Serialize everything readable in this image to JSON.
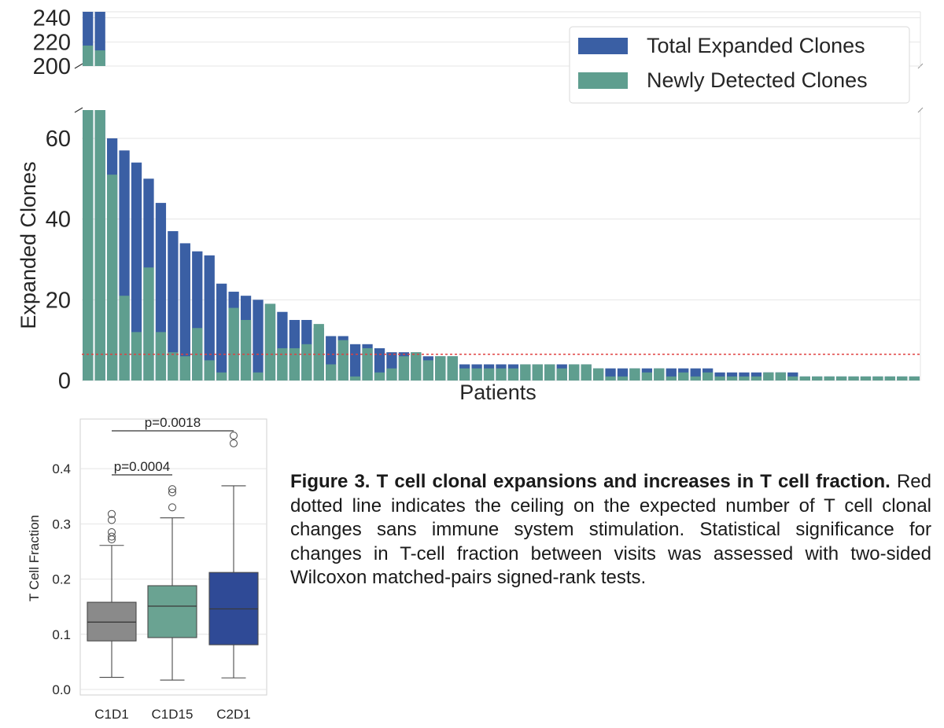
{
  "colors": {
    "total": "#3a5fa4",
    "new": "#5f9e8f",
    "threshold": "#e04040",
    "grid": "#e6e6e6",
    "box_c1d1": "#8a8a8a",
    "box_c1d15": "#6aa392",
    "box_c2d1": "#2f4a96"
  },
  "chart_data": [
    {
      "type": "bar",
      "name": "expanded-clones-by-patient",
      "xlabel": "Patients",
      "ylabel": "Expanded Clones",
      "grid": true,
      "broken_axis": true,
      "upper_ylim": [
        200,
        245
      ],
      "upper_ticks": [
        "240",
        "220",
        "200"
      ],
      "lower_ylim": [
        0,
        67
      ],
      "lower_ticks": [
        "60",
        "40",
        "20",
        "0"
      ],
      "threshold": 6.5,
      "legend": [
        "Total Expanded Clones",
        "Newly Detected Clones"
      ],
      "legend_position": "top-right",
      "series": [
        {
          "name": "Total Expanded Clones",
          "values": [
            245,
            245,
            60,
            57,
            54,
            50,
            44,
            37,
            34,
            32,
            31,
            24,
            22,
            21,
            20,
            19,
            17,
            15,
            15,
            13,
            11,
            11,
            9,
            9,
            8,
            7,
            7,
            7,
            6,
            6,
            6,
            4,
            4,
            4,
            4,
            4,
            4,
            4,
            4,
            4,
            4,
            4,
            3,
            3,
            3,
            3,
            3,
            3,
            3,
            3,
            3,
            3,
            2,
            2,
            2,
            2,
            2,
            2,
            2,
            1,
            1,
            1,
            1,
            1,
            1,
            1,
            1,
            1,
            1
          ]
        },
        {
          "name": "Newly Detected Clones",
          "values": [
            217,
            213,
            51,
            21,
            12,
            28,
            12,
            7,
            6,
            13,
            5,
            2,
            18,
            15,
            2,
            19,
            8,
            8,
            9,
            14,
            4,
            10,
            1,
            8,
            2,
            3,
            6,
            7,
            5,
            6,
            6,
            3,
            3,
            3,
            3,
            3,
            4,
            4,
            4,
            3,
            4,
            4,
            3,
            1,
            1,
            3,
            2,
            3,
            1,
            2,
            1,
            2,
            1,
            1,
            1,
            1,
            2,
            2,
            1,
            1,
            1,
            1,
            1,
            1,
            1,
            1,
            1,
            1,
            1
          ]
        }
      ]
    },
    {
      "type": "box",
      "name": "t-cell-fraction-by-visit",
      "xlabel": "",
      "ylabel": "T Cell Fraction",
      "ylim": [
        -0.01,
        0.49
      ],
      "ticks": [
        "0.0",
        "0.1",
        "0.2",
        "0.3",
        "0.4"
      ],
      "categories": [
        "C1D1",
        "C1D15",
        "C2D1"
      ],
      "boxes": [
        {
          "label": "C1D1",
          "whisker_low": 0.022,
          "q1": 0.088,
          "median": 0.122,
          "q3": 0.158,
          "whisker_high": 0.261,
          "outliers": [
            0.318,
            0.307,
            0.285,
            0.277,
            0.272
          ]
        },
        {
          "label": "C1D15",
          "whisker_low": 0.017,
          "q1": 0.094,
          "median": 0.151,
          "q3": 0.188,
          "whisker_high": 0.311,
          "outliers": [
            0.363,
            0.357,
            0.33
          ]
        },
        {
          "label": "C2D1",
          "whisker_low": 0.021,
          "q1": 0.081,
          "median": 0.146,
          "q3": 0.212,
          "whisker_high": 0.369,
          "outliers": [
            0.46,
            0.446
          ]
        }
      ],
      "annotations": [
        {
          "text": "p=0.0018",
          "from": "C1D1",
          "to": "C2D1"
        },
        {
          "text": "p=0.0004",
          "from": "C1D1",
          "to": "C1D15"
        }
      ]
    }
  ],
  "caption": {
    "bold": "Figure 3. T cell clonal expansions and increases in T cell fraction.",
    "text": " Red dotted line indicates the ceiling on the expected number of T cell clonal changes sans immune system stimulation. Statistical significance for changes in T-cell fraction between visits was assessed with two-sided Wilcoxon matched-pairs signed-rank tests."
  }
}
